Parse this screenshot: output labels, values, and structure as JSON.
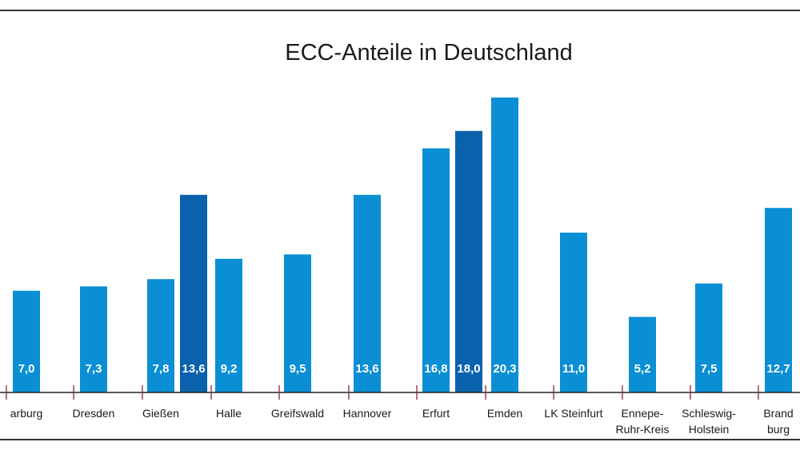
{
  "chart_data": {
    "type": "bar",
    "title": "ECC-Anteile in Deutschland",
    "xlabel": "",
    "ylabel": "",
    "ylim": [
      0,
      21
    ],
    "grid": false,
    "colors": {
      "default": "#0a8fd4",
      "highlight": "#0a62ad"
    },
    "bars": [
      {
        "category": [
          "arburg"
        ],
        "value": 7.0,
        "label": "7,0",
        "highlight": false
      },
      {
        "category": [
          "Dresden"
        ],
        "value": 7.3,
        "label": "7,3",
        "highlight": false
      },
      {
        "category": [
          "Gießen"
        ],
        "value": 7.8,
        "label": "7,8",
        "highlight": false
      },
      {
        "category": [
          ""
        ],
        "value": 13.6,
        "label": "13,6",
        "highlight": true
      },
      {
        "category": [
          "Halle"
        ],
        "value": 9.2,
        "label": "9,2",
        "highlight": false
      },
      {
        "category": [
          "Greifswald"
        ],
        "value": 9.5,
        "label": "9,5",
        "highlight": false
      },
      {
        "category": [
          "Hannover"
        ],
        "value": 13.6,
        "label": "13,6",
        "highlight": false
      },
      {
        "category": [
          "Erfurt"
        ],
        "value": 16.8,
        "label": "16,8",
        "highlight": false
      },
      {
        "category": [
          ""
        ],
        "value": 18.0,
        "label": "18,0",
        "highlight": true
      },
      {
        "category": [
          "Emden"
        ],
        "value": 20.3,
        "label": "20,3",
        "highlight": false
      },
      {
        "category": [
          "LK Steinfurt"
        ],
        "value": 11.0,
        "label": "11,0",
        "highlight": false
      },
      {
        "category": [
          "Ennepe-",
          "Ruhr-Kreis"
        ],
        "value": 5.2,
        "label": "5,2",
        "highlight": false
      },
      {
        "category": [
          "Schleswig-",
          "Holstein"
        ],
        "value": 7.5,
        "label": "7,5",
        "highlight": false
      },
      {
        "category": [
          "Brand",
          "burg"
        ],
        "value": 12.7,
        "label": "12,7",
        "highlight": false
      }
    ]
  }
}
